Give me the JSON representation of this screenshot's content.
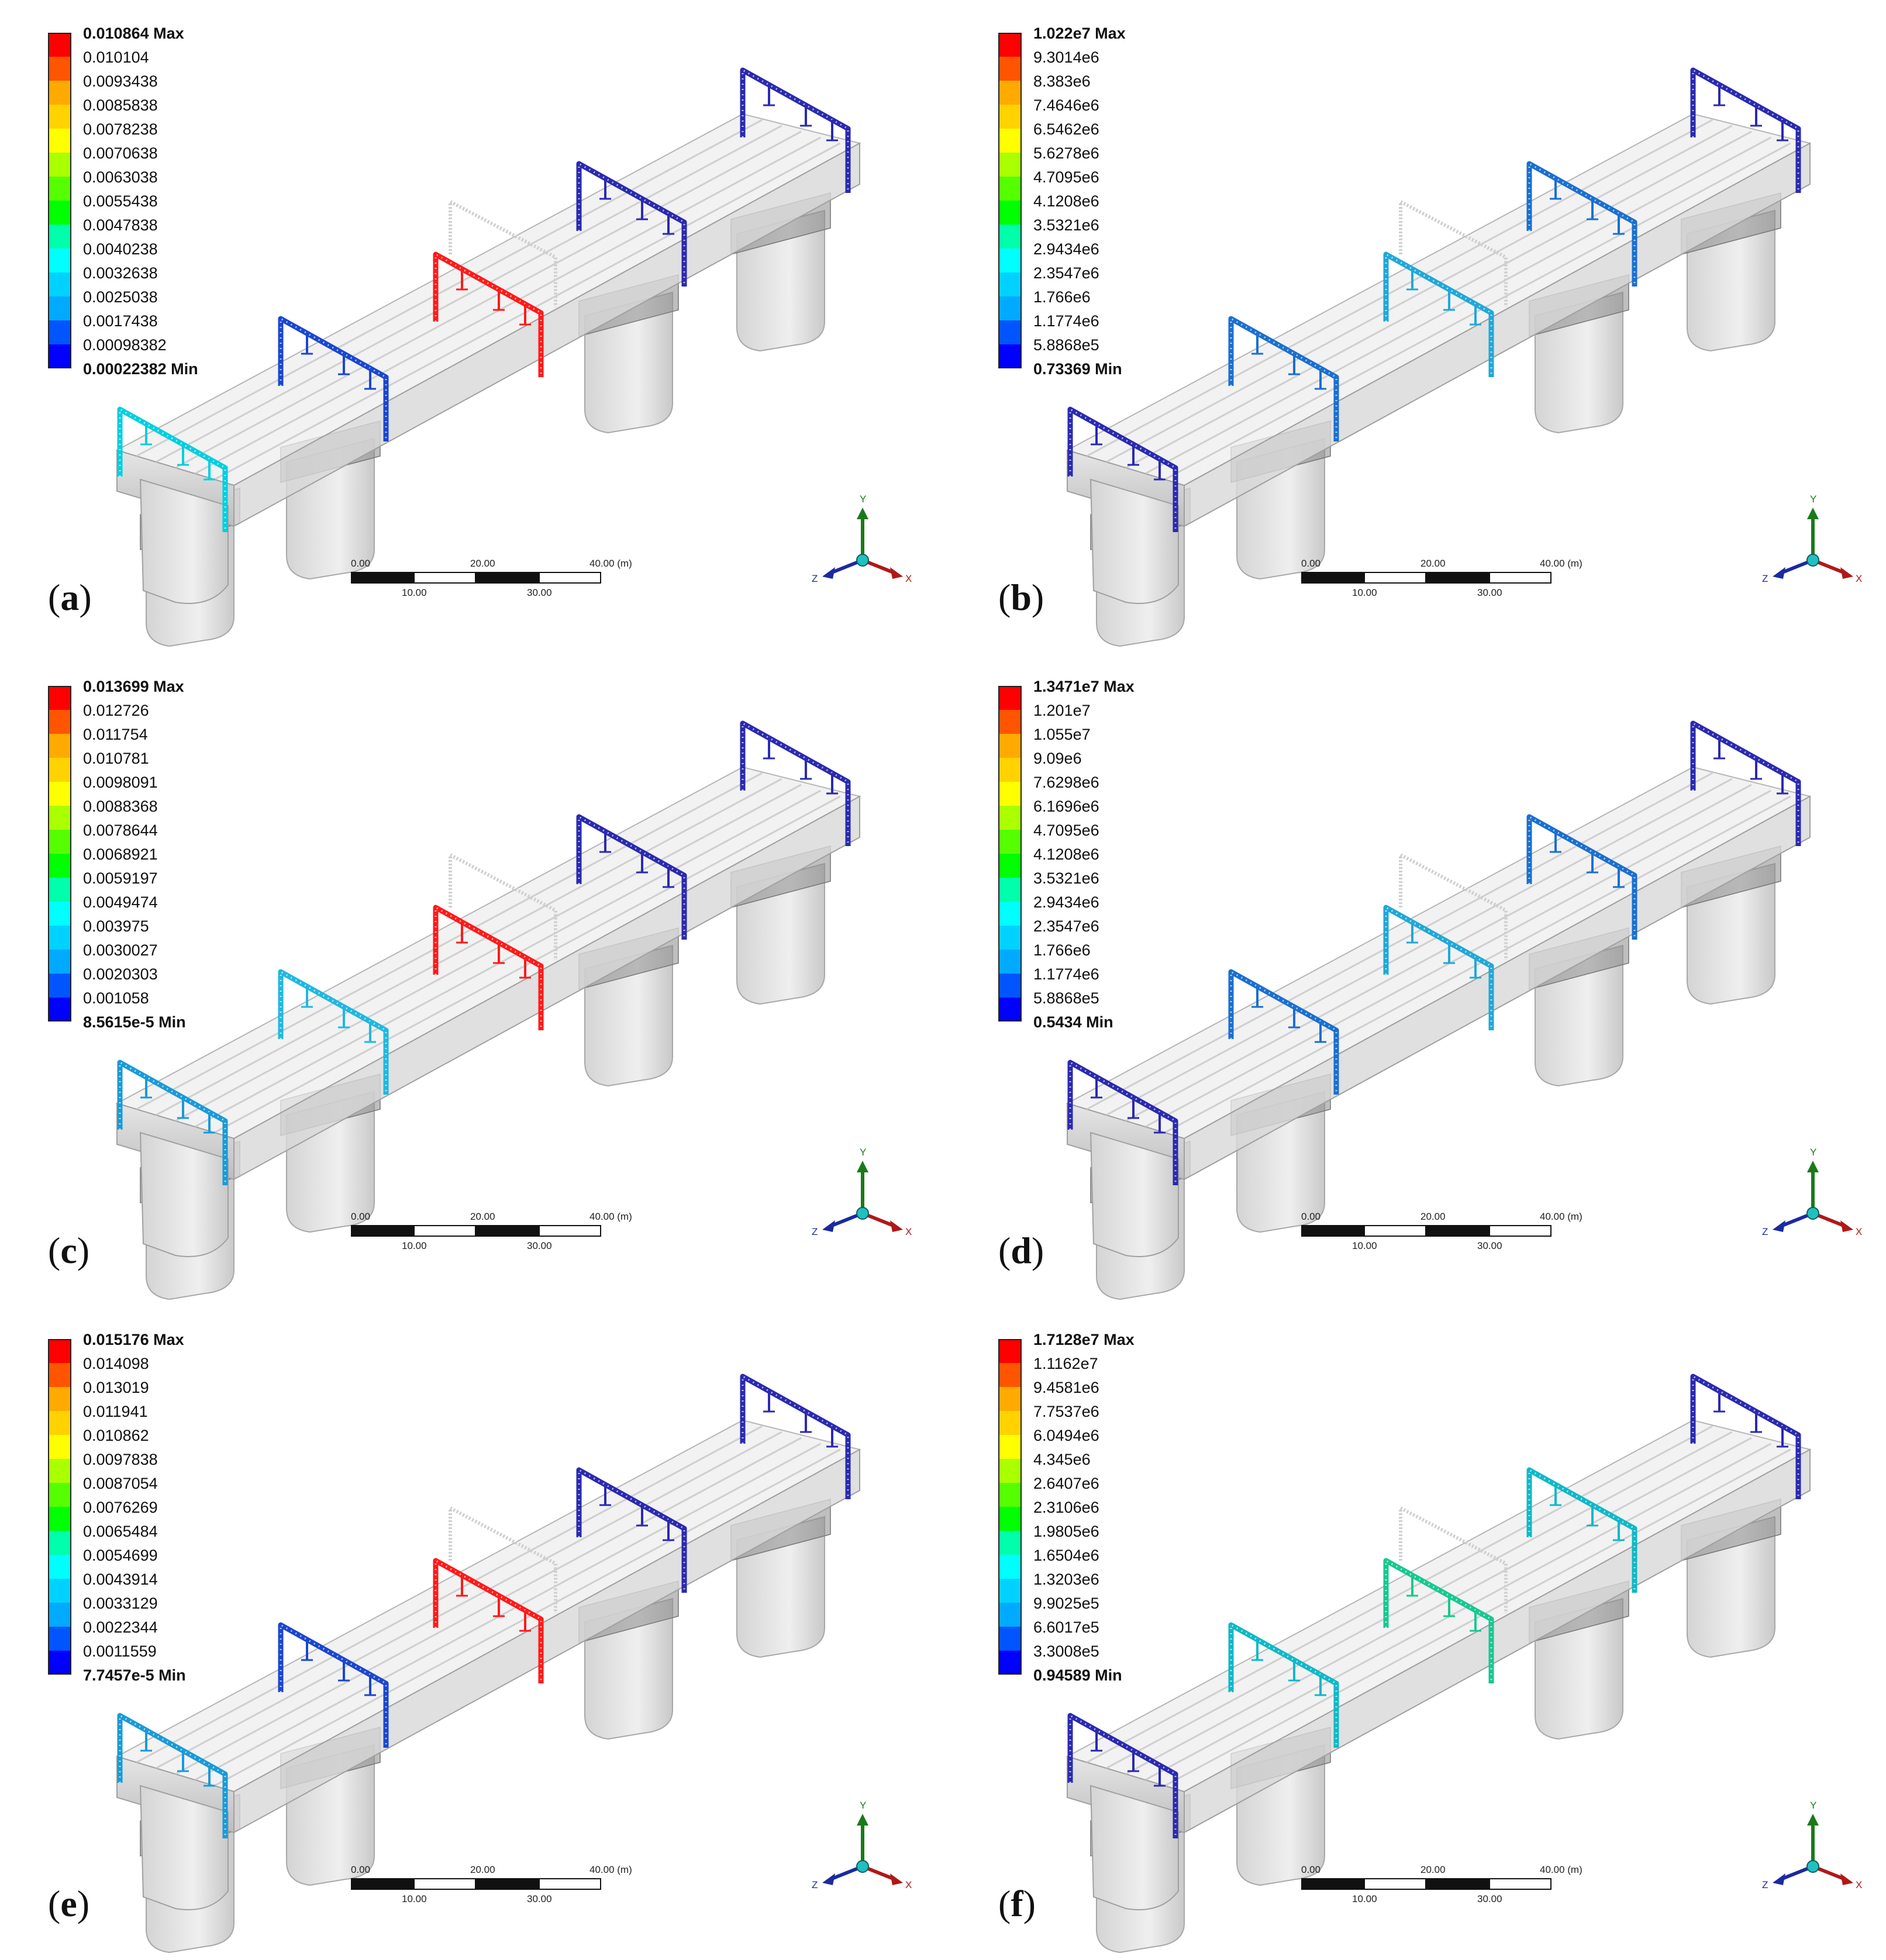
{
  "colors": {
    "legend_bands": [
      "#ff0000",
      "#ff5500",
      "#ffaa00",
      "#ffd200",
      "#ffff00",
      "#aaff00",
      "#55ff00",
      "#00ff00",
      "#00ffaa",
      "#00ffff",
      "#00d2ff",
      "#00aaff",
      "#0055ff",
      "#0000ff"
    ],
    "min_color": "#0000ff",
    "max_color": "#ff0000"
  },
  "panels": [
    {
      "label": "a",
      "legend": [
        "0.010864 Max",
        "0.010104",
        "0.0093438",
        "0.0085838",
        "0.0078238",
        "0.0070638",
        "0.0063038",
        "0.0055438",
        "0.0047838",
        "0.0040238",
        "0.0032638",
        "0.0025038",
        "0.0017438",
        "0.00098382",
        "0.00022382 Min"
      ],
      "frame_colors": [
        "#00cfe0",
        "#1a47d0",
        "#ff1a1a",
        "#2a2ab0",
        "#2a2ab0"
      ],
      "scale": {
        "top": [
          "0.00",
          "20.00",
          "40.00 (m)"
        ],
        "bottom": [
          "10.00",
          "30.00"
        ]
      },
      "triad": {
        "y": "Y",
        "x": "X",
        "z": "Z"
      }
    },
    {
      "label": "b",
      "legend": [
        "1.022e7 Max",
        "9.3014e6",
        "8.383e6",
        "7.4646e6",
        "6.5462e6",
        "5.6278e6",
        "4.7095e6",
        "4.1208e6",
        "3.5321e6",
        "2.9434e6",
        "2.3547e6",
        "1.766e6",
        "1.1774e6",
        "5.8868e5",
        "0.73369 Min"
      ],
      "frame_colors": [
        "#2a2ab0",
        "#1a6fd0",
        "#20a8d8",
        "#1a6fd0",
        "#2a2ab0"
      ],
      "scale": {
        "top": [
          "0.00",
          "20.00",
          "40.00 (m)"
        ],
        "bottom": [
          "10.00",
          "30.00"
        ]
      },
      "triad": {
        "y": "Y",
        "x": "X",
        "z": "Z"
      }
    },
    {
      "label": "c",
      "legend": [
        "0.013699 Max",
        "0.012726",
        "0.011754",
        "0.010781",
        "0.0098091",
        "0.0088368",
        "0.0078644",
        "0.0068921",
        "0.0059197",
        "0.0049474",
        "0.003975",
        "0.0030027",
        "0.0020303",
        "0.001058",
        "8.5615e-5 Min"
      ],
      "frame_colors": [
        "#1a9ad8",
        "#20b8e0",
        "#ff1a1a",
        "#2a2ab0",
        "#2a2ab0"
      ],
      "scale": {
        "top": [
          "0.00",
          "20.00",
          "40.00 (m)"
        ],
        "bottom": [
          "10.00",
          "30.00"
        ]
      },
      "triad": {
        "y": "Y",
        "x": "X",
        "z": "Z"
      }
    },
    {
      "label": "d",
      "legend": [
        "1.3471e7 Max",
        "1.201e7",
        "1.055e7",
        "9.09e6",
        "7.6298e6",
        "6.1696e6",
        "4.7095e6",
        "4.1208e6",
        "3.5321e6",
        "2.9434e6",
        "2.3547e6",
        "1.766e6",
        "1.1774e6",
        "5.8868e5",
        "0.5434 Min"
      ],
      "frame_colors": [
        "#2a2ab0",
        "#1a6fd0",
        "#20a8d8",
        "#1a6fd0",
        "#2a2ab0"
      ],
      "scale": {
        "top": [
          "0.00",
          "20.00",
          "40.00 (m)"
        ],
        "bottom": [
          "10.00",
          "30.00"
        ]
      },
      "triad": {
        "y": "Y",
        "x": "X",
        "z": "Z"
      }
    },
    {
      "label": "e",
      "legend": [
        "0.015176 Max",
        "0.014098",
        "0.013019",
        "0.011941",
        "0.010862",
        "0.0097838",
        "0.0087054",
        "0.0076269",
        "0.0065484",
        "0.0054699",
        "0.0043914",
        "0.0033129",
        "0.0022344",
        "0.0011559",
        "7.7457e-5 Min"
      ],
      "frame_colors": [
        "#1a9ad8",
        "#1a47d0",
        "#ff1a1a",
        "#2a2ab0",
        "#2a2ab0"
      ],
      "scale": {
        "top": [
          "0.00",
          "20.00",
          "40.00 (m)"
        ],
        "bottom": [
          "10.00",
          "30.00"
        ]
      },
      "triad": {
        "y": "Y",
        "x": "X",
        "z": "Z"
      }
    },
    {
      "label": "f",
      "legend": [
        "1.7128e7 Max",
        "1.1162e7",
        "9.4581e6",
        "7.7537e6",
        "6.0494e6",
        "4.345e6",
        "2.6407e6",
        "2.3106e6",
        "1.9805e6",
        "1.6504e6",
        "1.3203e6",
        "9.9025e5",
        "6.6017e5",
        "3.3008e5",
        "0.94589 Min"
      ],
      "frame_colors": [
        "#2a2ab0",
        "#10b8c8",
        "#18c890",
        "#10b8c8",
        "#2a2ab0"
      ],
      "scale": {
        "top": [
          "0.00",
          "20.00",
          "40.00 (m)"
        ],
        "bottom": [
          "10.00",
          "30.00"
        ]
      },
      "triad": {
        "y": "Y",
        "x": "X",
        "z": "Z"
      }
    }
  ]
}
